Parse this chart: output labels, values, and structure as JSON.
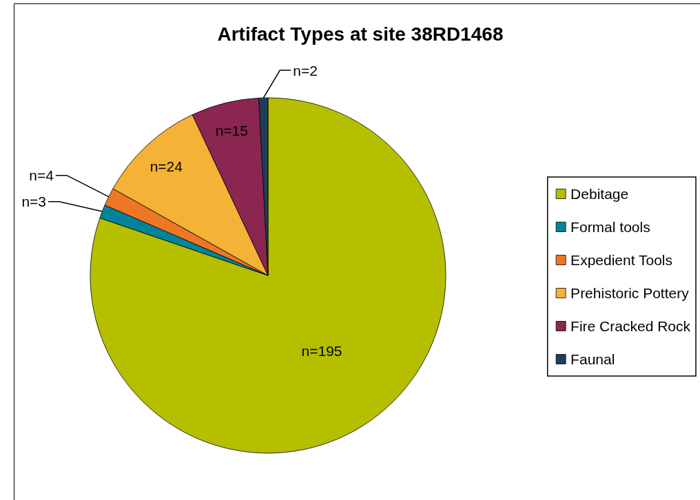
{
  "chart_data": {
    "type": "pie",
    "title": "Artifact Types at site 38RD1468",
    "categories": [
      "Debitage",
      "Formal tools",
      "Expedient Tools",
      "Prehistoric Pottery",
      "Fire Cracked Rock",
      "Faunal"
    ],
    "values": [
      195,
      3,
      4,
      24,
      15,
      2
    ],
    "colors": [
      "#b5bf00",
      "#00849a",
      "#ee7726",
      "#f4b236",
      "#8b2650",
      "#1f3e5a"
    ],
    "value_labels": [
      "n=195",
      "n=3",
      "n=4",
      "n=24",
      "n=15",
      "n=2"
    ],
    "legend": "right"
  }
}
